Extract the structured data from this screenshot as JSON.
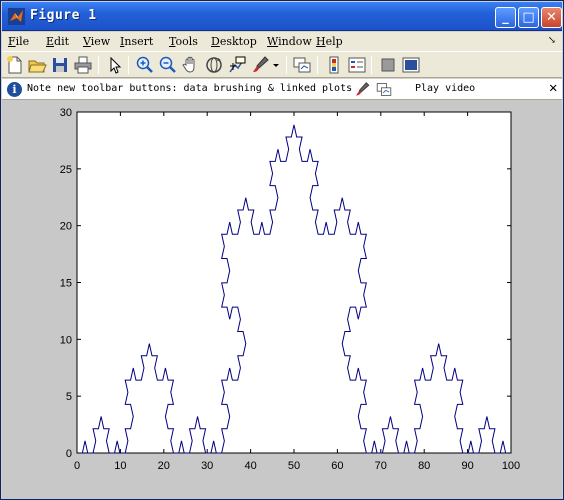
{
  "window": {
    "title": "Figure 1",
    "minimize_glyph": "_",
    "maximize_glyph": "□",
    "close_glyph": "✕"
  },
  "menubar": {
    "items": [
      {
        "accel": "F",
        "rest": "ile"
      },
      {
        "accel": "E",
        "rest": "dit"
      },
      {
        "accel": "V",
        "rest": "iew"
      },
      {
        "accel": "I",
        "rest": "nsert"
      },
      {
        "accel": "T",
        "rest": "ools"
      },
      {
        "accel": "D",
        "rest": "esktop"
      },
      {
        "accel": "W",
        "rest": "indow"
      },
      {
        "accel": "H",
        "rest": "elp"
      }
    ],
    "dock_arrow": "↘"
  },
  "toolbar": {
    "icons": [
      "new-figure-icon",
      "open-file-icon",
      "save-icon",
      "print-icon",
      "edit-plot-arrow-icon",
      "zoom-in-icon",
      "zoom-out-icon",
      "pan-hand-icon",
      "rotate-3d-icon",
      "data-cursor-icon",
      "brush-icon",
      "link-plot-icon",
      "colorbar-icon",
      "legend-icon",
      "hide-plot-tools-icon",
      "show-plot-tools-icon"
    ]
  },
  "infobar": {
    "icon_glyph": "i",
    "message": "Note new toolbar buttons: data brushing & linked plots",
    "play_video": "Play video",
    "close_glyph": "✕"
  },
  "chart_data": {
    "type": "line",
    "title": "",
    "xlabel": "",
    "ylabel": "",
    "xlim": [
      0,
      100
    ],
    "ylim": [
      0,
      30
    ],
    "xticks": [
      "0",
      "10",
      "20",
      "30",
      "40",
      "50",
      "60",
      "70",
      "80",
      "90",
      "100"
    ],
    "yticks": [
      "0",
      "5",
      "10",
      "15",
      "20",
      "25",
      "30"
    ],
    "grid": false,
    "series": [
      {
        "color": "#000080",
        "description_shape": "Koch-snowflake-like fractal outline with three lobes: small lobes peaking ~9.4 at x≈17 and x≈83, large central lobe peaking ~28.8 at x=50",
        "koch": {
          "x0": 0,
          "x1": 100,
          "y0": 0,
          "levels": 4
        }
      }
    ]
  }
}
